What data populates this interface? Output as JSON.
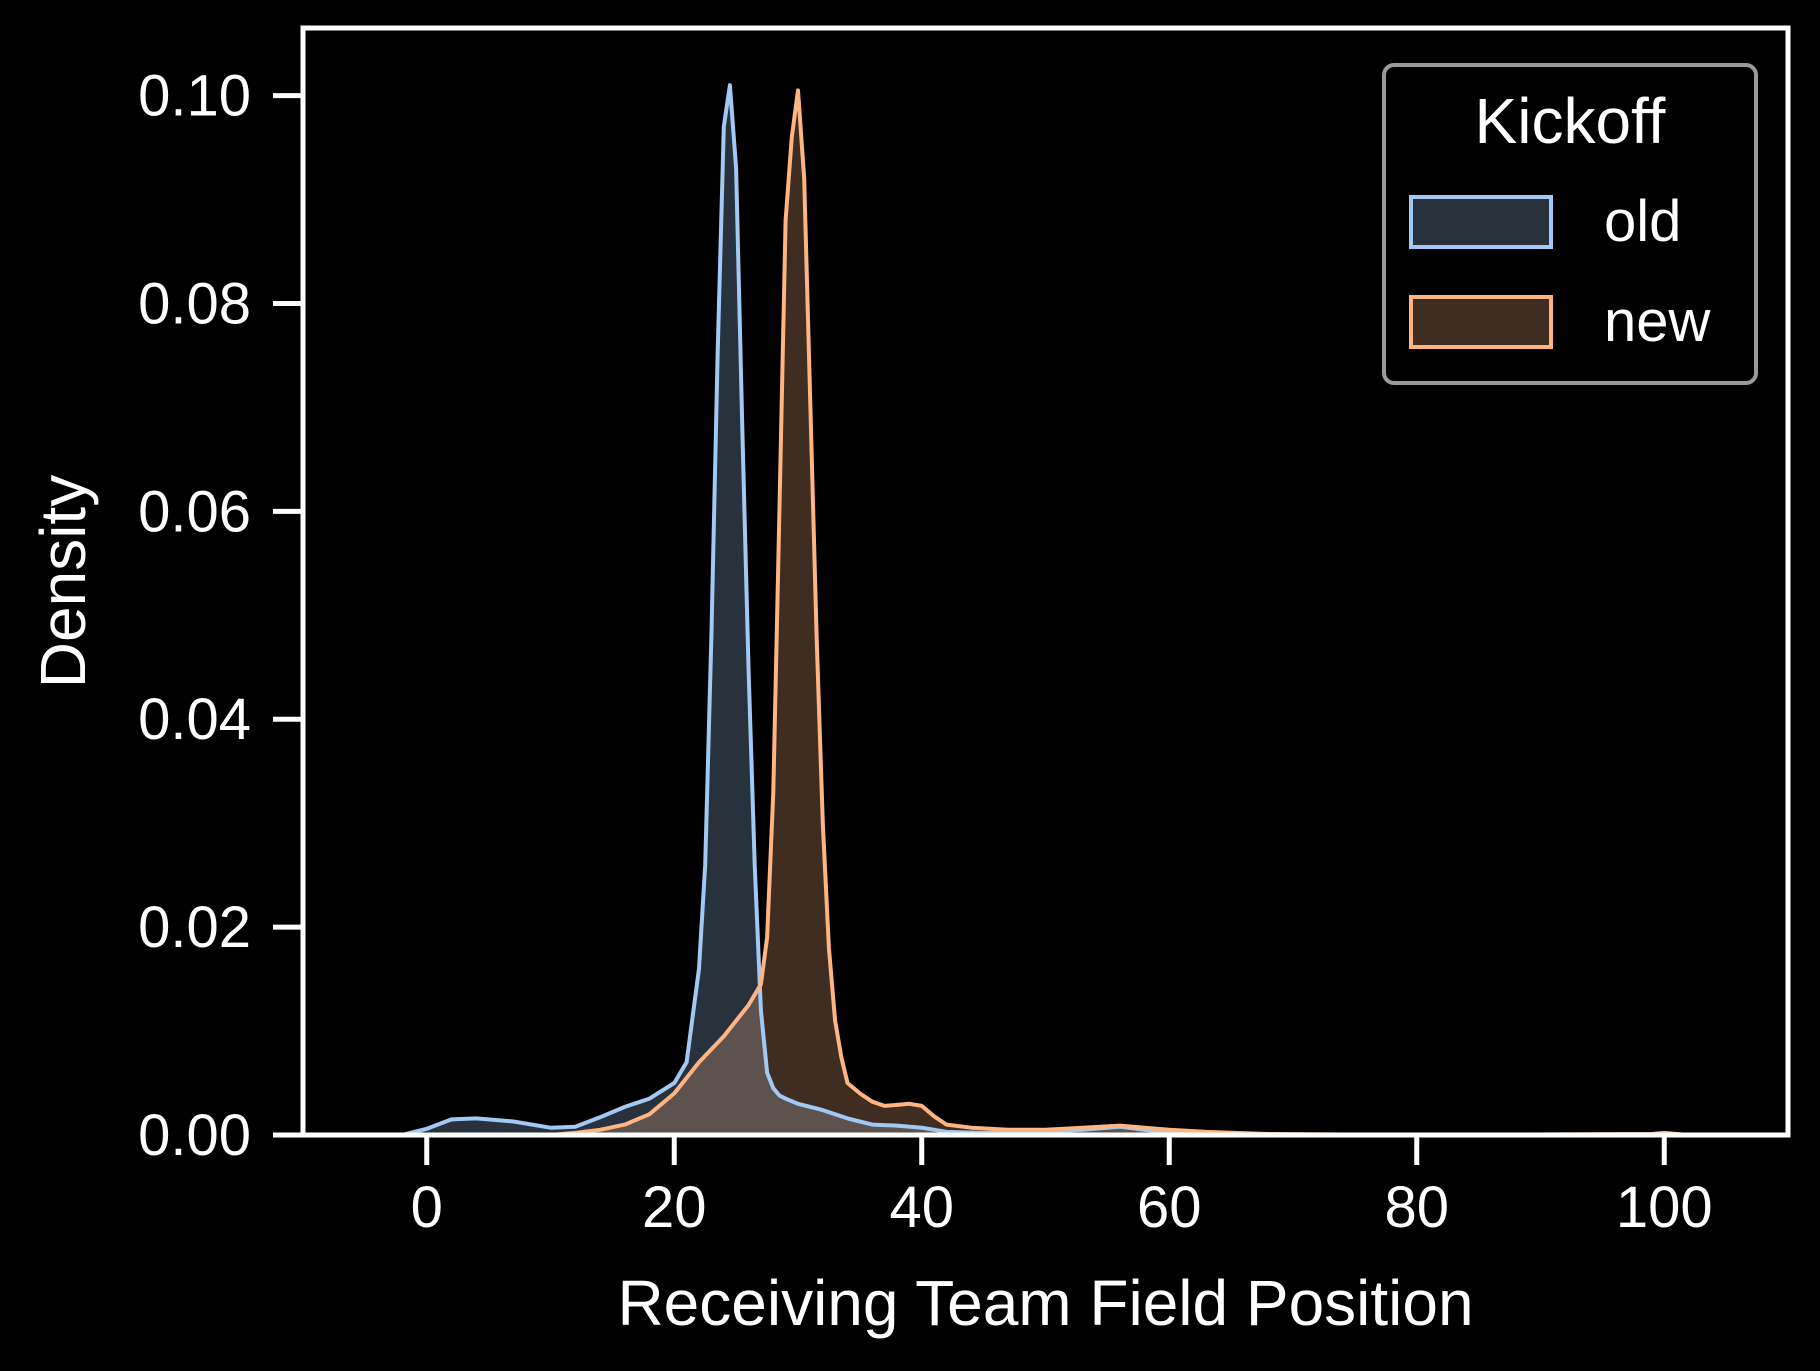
{
  "chart_data": {
    "type": "area",
    "title": "",
    "xlabel": "Receiving Team Field Position",
    "ylabel": "Density",
    "xlim": [
      -10,
      110
    ],
    "ylim": [
      0,
      0.1065
    ],
    "xticks": [
      0,
      20,
      40,
      60,
      80,
      100
    ],
    "xtick_labels": [
      "0",
      "20",
      "40",
      "60",
      "80",
      "100"
    ],
    "yticks": [
      0,
      0.02,
      0.04,
      0.06,
      0.08,
      0.1
    ],
    "ytick_labels": [
      "0.00",
      "0.02",
      "0.04",
      "0.06",
      "0.08",
      "0.10"
    ],
    "grid": false,
    "legend": {
      "title": "Kickoff",
      "position": "top-right",
      "entries": [
        "old",
        "new"
      ]
    },
    "series": [
      {
        "name": "old",
        "line_color": "#a1c9f4",
        "fill_color": "#a1c9f4",
        "x": [
          -2,
          0,
          2,
          4,
          7,
          10,
          12,
          14,
          16,
          18,
          20,
          21,
          22,
          22.5,
          23,
          23.5,
          24,
          24.5,
          25,
          25.5,
          26,
          26.5,
          27,
          27.5,
          28,
          28.5,
          29,
          30,
          32,
          34,
          36,
          38,
          40,
          42,
          45,
          50,
          53,
          56,
          58,
          60,
          65,
          70,
          100
        ],
        "y": [
          0,
          0.0006,
          0.0015,
          0.0016,
          0.0013,
          0.0007,
          0.0008,
          0.0017,
          0.0027,
          0.0035,
          0.005,
          0.007,
          0.016,
          0.026,
          0.048,
          0.075,
          0.097,
          0.101,
          0.093,
          0.068,
          0.045,
          0.026,
          0.012,
          0.006,
          0.0045,
          0.0038,
          0.0035,
          0.003,
          0.0024,
          0.0016,
          0.001,
          0.0009,
          0.0007,
          0.0003,
          0.0002,
          0.0003,
          0.0005,
          0.0008,
          0.0005,
          0.0002,
          0.0001,
          0,
          0
        ]
      },
      {
        "name": "new",
        "line_color": "#ffb482",
        "fill_color": "#ffb482",
        "x": [
          10,
          12,
          14,
          16,
          18,
          20,
          22,
          24,
          26,
          27,
          27.5,
          28,
          28.5,
          29,
          29.5,
          30,
          30.5,
          31,
          31.5,
          32,
          32.5,
          33,
          33.5,
          34,
          35,
          36,
          37,
          38,
          39,
          40,
          41,
          42,
          44,
          47,
          50,
          53,
          56,
          58,
          60,
          63,
          68,
          80,
          99,
          100,
          101,
          102
        ],
        "y": [
          0,
          0.0002,
          0.0005,
          0.001,
          0.002,
          0.004,
          0.007,
          0.0095,
          0.0125,
          0.0145,
          0.019,
          0.033,
          0.06,
          0.088,
          0.096,
          0.1005,
          0.092,
          0.07,
          0.048,
          0.03,
          0.018,
          0.011,
          0.0075,
          0.005,
          0.004,
          0.0032,
          0.0028,
          0.0029,
          0.003,
          0.0028,
          0.0018,
          0.001,
          0.0007,
          0.0005,
          0.0005,
          0.0007,
          0.0009,
          0.0007,
          0.0005,
          0.0003,
          0.0001,
          0,
          0.0001,
          0.0002,
          0.0001,
          0
        ]
      }
    ]
  }
}
